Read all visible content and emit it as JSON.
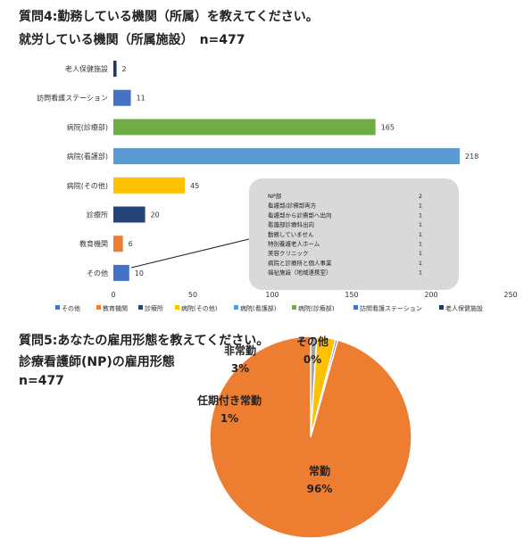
{
  "q4": {
    "title": "質問4:勤務している機関（所属）を教えてください。",
    "subtitle": "就労している機関（所属施設）　n=477"
  },
  "q5": {
    "title": "質問5:あなたの雇用形態を教えてください。",
    "subtitle": "診療看護師(NP)の雇用形態",
    "n": "n=477"
  },
  "chart_data": [
    {
      "type": "bar",
      "orientation": "horizontal",
      "categories": [
        "老人保健施設",
        "訪問看護ステーション",
        "病院(診療部)",
        "病院(看護部)",
        "病院(その他)",
        "診療所",
        "教育機関",
        "その他"
      ],
      "values": [
        2,
        11,
        165,
        218,
        45,
        20,
        6,
        10
      ],
      "colors": [
        "#1f3864",
        "#4472c4",
        "#70ad47",
        "#5b9bd5",
        "#ffc000",
        "#264478",
        "#ed7d31",
        "#4472c4"
      ],
      "xlim": [
        0,
        250
      ],
      "xticks": [
        0,
        50,
        100,
        150,
        200,
        250
      ],
      "legend_position": "bottom",
      "legend": [
        {
          "name": "その他",
          "color": "#4472c4"
        },
        {
          "name": "教育機関",
          "color": "#ed7d31"
        },
        {
          "name": "診療所",
          "color": "#264478"
        },
        {
          "name": "病院(その他)",
          "color": "#ffc000"
        },
        {
          "name": "病院(看護部)",
          "color": "#5b9bd5"
        },
        {
          "name": "病院(診療部)",
          "color": "#70ad47"
        },
        {
          "name": "訪問看護ステーション",
          "color": "#4472c4"
        },
        {
          "name": "老人保健施設",
          "color": "#1f3864"
        }
      ],
      "callout": {
        "rows": [
          {
            "label": "NP部",
            "value": "2"
          },
          {
            "label": "看護部/診療部両方",
            "value": "1"
          },
          {
            "label": "看護部から診療部へ出向",
            "value": "1"
          },
          {
            "label": "看護部診療科出向",
            "value": "1"
          },
          {
            "label": "勤務していません",
            "value": "1"
          },
          {
            "label": "特別養護老人ホーム",
            "value": "1"
          },
          {
            "label": "美容クリニック",
            "value": "1"
          },
          {
            "label": "病院と診療所と個人事業",
            "value": "1"
          },
          {
            "label": "福祉施設（地域連携室）",
            "value": "1"
          }
        ]
      }
    },
    {
      "type": "pie",
      "slices": [
        {
          "name": "常勤",
          "label": "96%",
          "value": 96,
          "color": "#ed7d31"
        },
        {
          "name": "任期付き常勤",
          "label": "1%",
          "value": 1,
          "color": "#a5a5a5"
        },
        {
          "name": "非常勤",
          "label": "3%",
          "value": 3,
          "color": "#ffc000"
        },
        {
          "name": "その他",
          "label": "0%",
          "value": 0.35,
          "color": "#4472c4"
        }
      ]
    }
  ]
}
